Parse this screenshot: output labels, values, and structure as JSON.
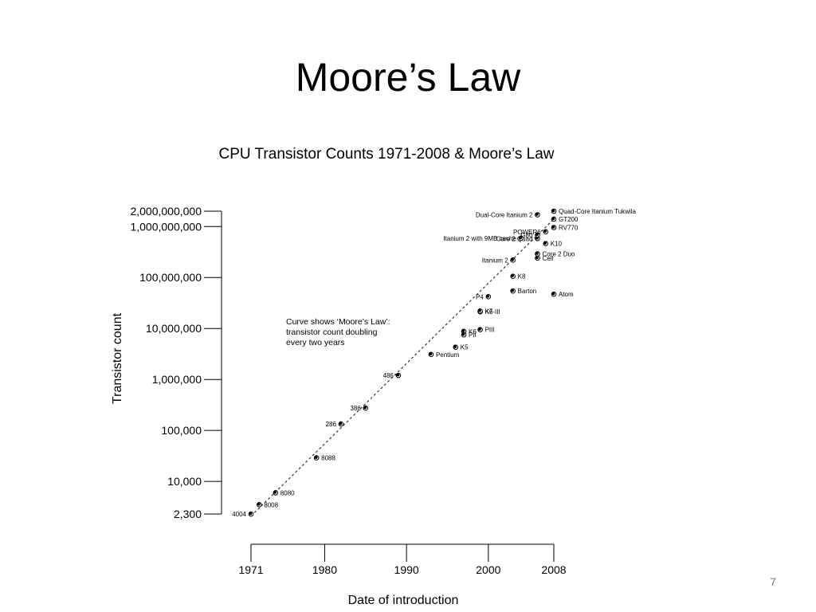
{
  "slide": {
    "title": "Moore’s Law",
    "number": "7"
  },
  "chart_data": {
    "type": "scatter",
    "title": "CPU Transistor Counts 1971-2008 & Moore’s Law",
    "xlabel": "Date of introduction",
    "ylabel": "Transistor count",
    "y_scale": "log",
    "xlim": [
      1971,
      2008
    ],
    "ylim": [
      2300,
      2000000000
    ],
    "x_ticks": [
      1971,
      1980,
      1990,
      2000,
      2008
    ],
    "y_ticks": [
      {
        "value": 2000000000,
        "label": "2,000,000,000"
      },
      {
        "value": 1000000000,
        "label": "1,000,000,000"
      },
      {
        "value": 100000000,
        "label": "100,000,000"
      },
      {
        "value": 10000000,
        "label": "10,000,000"
      },
      {
        "value": 1000000,
        "label": "1,000,000"
      },
      {
        "value": 100000,
        "label": "100,000"
      },
      {
        "value": 10000,
        "label": "10,000"
      },
      {
        "value": 2300,
        "label": "2,300"
      }
    ],
    "annotation": [
      "Curve shows ‘Moore’s Law’:",
      "transistor count doubling",
      "every two years"
    ],
    "trend": {
      "start": [
        1971,
        2100
      ],
      "end": [
        2008,
        1400000000
      ]
    },
    "points": [
      {
        "name": "4004",
        "year": 1971,
        "count": 2300,
        "label_side": "left"
      },
      {
        "name": "8008",
        "year": 1972,
        "count": 3500,
        "label_side": "right"
      },
      {
        "name": "8080",
        "year": 1974,
        "count": 6000,
        "label_side": "right"
      },
      {
        "name": "8088",
        "year": 1979,
        "count": 29000,
        "label_side": "right"
      },
      {
        "name": "286",
        "year": 1982,
        "count": 134000,
        "label_side": "left"
      },
      {
        "name": "386",
        "year": 1985,
        "count": 275000,
        "label_side": "left"
      },
      {
        "name": "486",
        "year": 1989,
        "count": 1200000,
        "label_side": "left"
      },
      {
        "name": "Pentium",
        "year": 1993,
        "count": 3100000,
        "label_side": "right"
      },
      {
        "name": "K5",
        "year": 1996,
        "count": 4300000,
        "label_side": "right"
      },
      {
        "name": "K6",
        "year": 1997,
        "count": 8800000,
        "label_side": "right"
      },
      {
        "name": "PII",
        "year": 1997,
        "count": 7500000,
        "label_side": "right"
      },
      {
        "name": "PIII",
        "year": 1999,
        "count": 9500000,
        "label_side": "right"
      },
      {
        "name": "K6-III",
        "year": 1999,
        "count": 21300000,
        "label_side": "right"
      },
      {
        "name": "K7",
        "year": 1999,
        "count": 22000000,
        "label_side": "right"
      },
      {
        "name": "P4",
        "year": 2000,
        "count": 42000000,
        "label_side": "left"
      },
      {
        "name": "Barton",
        "year": 2003,
        "count": 54300000,
        "label_side": "right"
      },
      {
        "name": "K8",
        "year": 2003,
        "count": 105900000,
        "label_side": "right"
      },
      {
        "name": "Atom",
        "year": 2008,
        "count": 47000000,
        "label_side": "right"
      },
      {
        "name": "Itanium 2",
        "year": 2003,
        "count": 220000000,
        "label_side": "left"
      },
      {
        "name": "Cell",
        "year": 2006,
        "count": 241000000,
        "label_side": "right"
      },
      {
        "name": "Core 2 Duo",
        "year": 2006,
        "count": 291000000,
        "label_side": "right"
      },
      {
        "name": "Core 2 Quad",
        "year": 2006,
        "count": 582000000,
        "label_side": "left"
      },
      {
        "name": "Itanium 2 with 9MB cache",
        "year": 2004,
        "count": 592000000,
        "label_side": "left"
      },
      {
        "name": "K10",
        "year": 2007,
        "count": 463000000,
        "label_side": "right"
      },
      {
        "name": "G80",
        "year": 2006,
        "count": 681000000,
        "label_side": "left"
      },
      {
        "name": "POWER6",
        "year": 2007,
        "count": 789000000,
        "label_side": "left"
      },
      {
        "name": "Dual-Core Itanium 2",
        "year": 2006,
        "count": 1700000000,
        "label_side": "left"
      },
      {
        "name": "RV770",
        "year": 2008,
        "count": 956000000,
        "label_side": "right"
      },
      {
        "name": "GT200",
        "year": 2008,
        "count": 1400000000,
        "label_side": "right"
      },
      {
        "name": "Quad-Core Itanium Tukwila",
        "year": 2008,
        "count": 2000000000,
        "label_side": "right"
      }
    ]
  }
}
